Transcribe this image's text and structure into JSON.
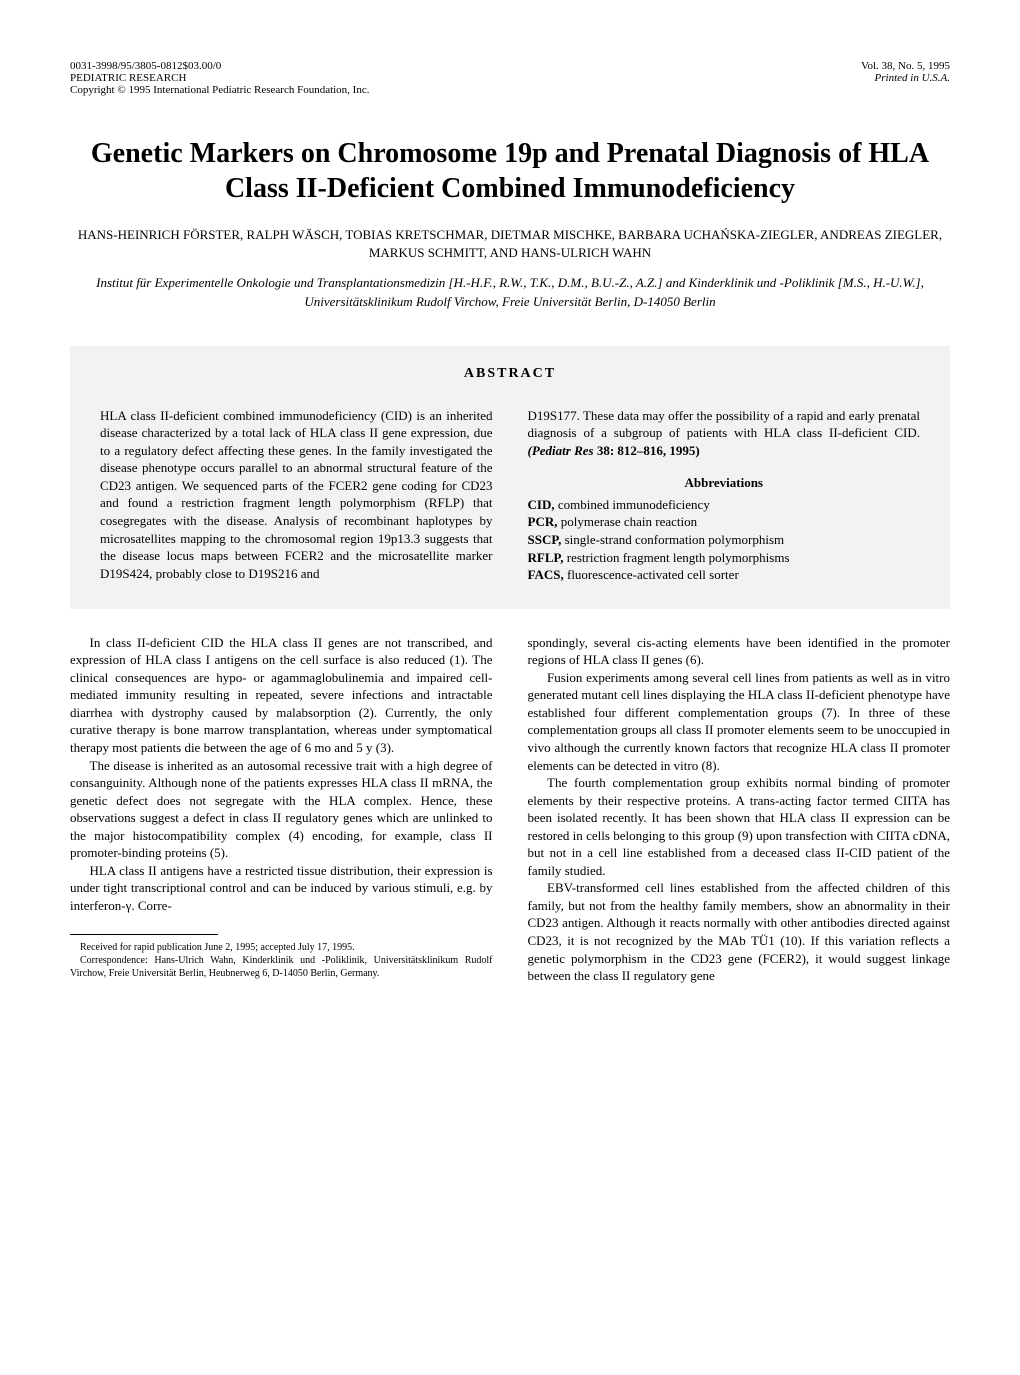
{
  "header": {
    "code": "0031-3998/95/3805-0812$03.00/0",
    "journal": "PEDIATRIC RESEARCH",
    "copyright": "Copyright © 1995 International Pediatric Research Foundation, Inc.",
    "vol": "Vol. 38, No. 5, 1995",
    "printed": "Printed in U.S.A."
  },
  "title": "Genetic Markers on Chromosome 19p and Prenatal Diagnosis of HLA Class II-Deficient Combined Immunodeficiency",
  "authors": "HANS-HEINRICH FÖRSTER, RALPH WÄSCH, TOBIAS KRETSCHMAR, DIETMAR MISCHKE, BARBARA UCHAŃSKA-ZIEGLER, ANDREAS ZIEGLER, MARKUS SCHMITT, AND HANS-ULRICH WAHN",
  "affiliation": "Institut für Experimentelle Onkologie und Transplantationsmedizin [H.-H.F., R.W., T.K., D.M., B.U.-Z., A.Z.] and Kinderklinik und -Poliklinik [M.S., H.-U.W.], Universitätsklinikum Rudolf Virchow, Freie Universität Berlin, D-14050 Berlin",
  "abstract": {
    "heading": "ABSTRACT",
    "left": "HLA class II-deficient combined immunodeficiency (CID) is an inherited disease characterized by a total lack of HLA class II gene expression, due to a regulatory defect affecting these genes. In the family investigated the disease phenotype occurs parallel to an abnormal structural feature of the CD23 antigen. We sequenced parts of the FCER2 gene coding for CD23 and found a restriction fragment length polymorphism (RFLP) that cosegregates with the disease. Analysis of recombinant haplotypes by microsatellites mapping to the chromosomal region 19p13.3 suggests that the disease locus maps between FCER2 and the microsatellite marker D19S424, probably close to D19S216 and",
    "right_top": "D19S177. These data may offer the possibility of a rapid and early prenatal diagnosis of a subgroup of patients with HLA class II-deficient CID. ",
    "citation_ital": "(Pediatr Res",
    "citation_bold": " 38: 812–816, 1995)",
    "abbrev_heading": "Abbreviations",
    "abbrevs": [
      {
        "abbr": "CID,",
        "def": " combined immunodeficiency"
      },
      {
        "abbr": "PCR,",
        "def": " polymerase chain reaction"
      },
      {
        "abbr": "SSCP,",
        "def": " single-strand conformation polymorphism"
      },
      {
        "abbr": "RFLP,",
        "def": " restriction fragment length polymorphisms"
      },
      {
        "abbr": "FACS,",
        "def": " fluorescence-activated cell sorter"
      }
    ]
  },
  "body": {
    "left": [
      "In class II-deficient CID the HLA class II genes are not transcribed, and expression of HLA class I antigens on the cell surface is also reduced (1). The clinical consequences are hypo- or agammaglobulinemia and impaired cell-mediated immunity resulting in repeated, severe infections and intractable diarrhea with dystrophy caused by malabsorption (2). Currently, the only curative therapy is bone marrow transplantation, whereas under symptomatical therapy most patients die between the age of 6 mo and 5 y (3).",
      "The disease is inherited as an autosomal recessive trait with a high degree of consanguinity. Although none of the patients expresses HLA class II mRNA, the genetic defect does not segregate with the HLA complex. Hence, these observations suggest a defect in class II regulatory genes which are unlinked to the major histocompatibility complex (4) encoding, for example, class II promoter-binding proteins (5).",
      "HLA class II antigens have a restricted tissue distribution, their expression is under tight transcriptional control and can be induced by various stimuli, e.g. by interferon-γ. Corre-"
    ],
    "right": [
      "spondingly, several cis-acting elements have been identified in the promoter regions of HLA class II genes (6).",
      "Fusion experiments among several cell lines from patients as well as in vitro generated mutant cell lines displaying the HLA class II-deficient phenotype have established four different complementation groups (7). In three of these complementation groups all class II promoter elements seem to be unoccupied in vivo although the currently known factors that recognize HLA class II promoter elements can be detected in vitro (8).",
      "The fourth complementation group exhibits normal binding of promoter elements by their respective proteins. A trans-acting factor termed CIITA has been isolated recently. It has been shown that HLA class II expression can be restored in cells belonging to this group (9) upon transfection with CIITA cDNA, but not in a cell line established from a deceased class II-CID patient of the family studied.",
      "EBV-transformed cell lines established from the affected children of this family, but not from the healthy family members, show an abnormality in their CD23 antigen. Although it reacts normally with other antibodies directed against CD23, it is not recognized by the MAb TÜ1 (10). If this variation reflects a genetic polymorphism in the CD23 gene (FCER2), it would suggest linkage between the class II regulatory gene"
    ]
  },
  "footnotes": {
    "received": "Received for rapid publication June 2, 1995; accepted July 17, 1995.",
    "correspondence": "Correspondence: Hans-Ulrich Wahn, Kinderklinik und -Poliklinik, Universitätsklinikum Rudolf Virchow, Freie Universität Berlin, Heubnerweg 6, D-14050 Berlin, Germany."
  }
}
